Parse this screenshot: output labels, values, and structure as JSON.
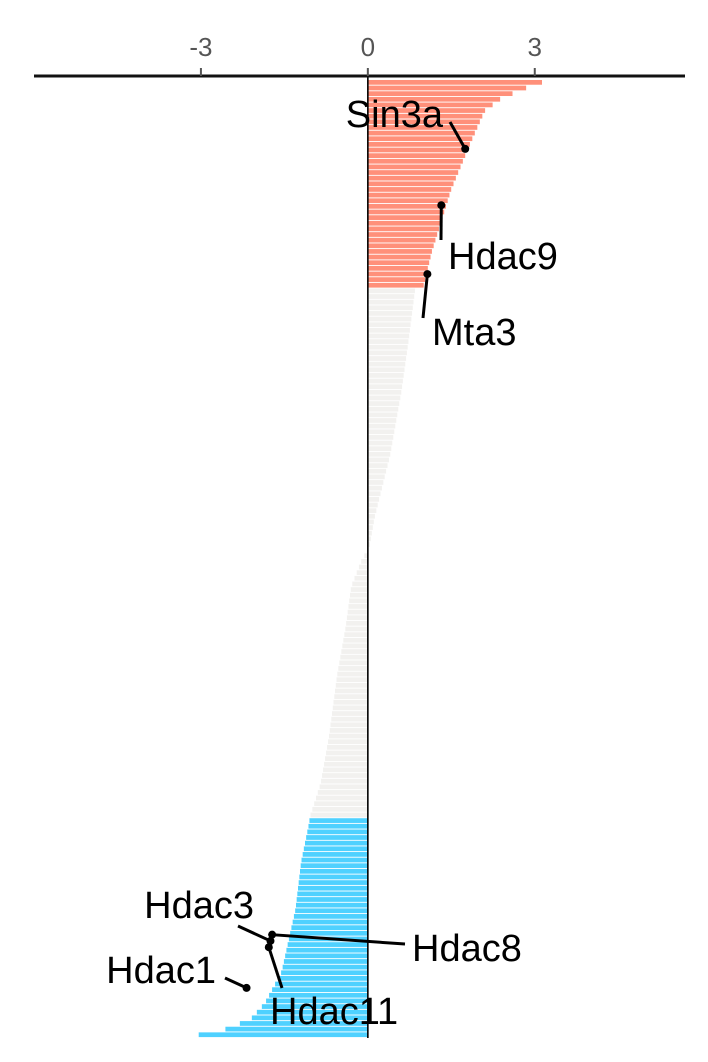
{
  "chart_data": {
    "type": "bar",
    "orientation": "horizontal",
    "title": "",
    "xlabel": "",
    "ylabel": "",
    "x_axis_position": "top",
    "xlim": [
      -6.0,
      5.7
    ],
    "ticks": [
      {
        "value": -3,
        "label": "-3"
      },
      {
        "value": 0,
        "label": "0"
      },
      {
        "value": 3,
        "label": "3"
      }
    ],
    "bar_count": 170,
    "rank_profile": [
      [
        0,
        3.4
      ],
      [
        1,
        3.1
      ],
      [
        3,
        2.8
      ],
      [
        6,
        2.4
      ],
      [
        10,
        2.1
      ],
      [
        20,
        1.85
      ],
      [
        35,
        1.5
      ],
      [
        55,
        1.15
      ],
      [
        66,
        1.0
      ],
      [
        67,
        0.85
      ],
      [
        85,
        0.72
      ],
      [
        100,
        0.6
      ],
      [
        120,
        0.4
      ],
      [
        140,
        0.12
      ],
      [
        150,
        0.02
      ],
      [
        153,
        -0.1
      ],
      [
        162,
        -0.3
      ],
      [
        175,
        -0.4
      ],
      [
        190,
        -0.55
      ],
      [
        210,
        -0.7
      ],
      [
        225,
        -0.85
      ],
      [
        236,
        -1.05
      ],
      [
        237,
        -1.05
      ],
      [
        250,
        -1.2
      ],
      [
        265,
        -1.3
      ],
      [
        285,
        -1.55
      ],
      [
        295,
        -1.85
      ],
      [
        300,
        -2.1
      ],
      [
        303,
        -2.5
      ],
      [
        305,
        -2.9
      ],
      [
        306,
        -4.3
      ]
    ],
    "rank_max": 306,
    "groups": [
      {
        "name": "up",
        "from_value": 1.0,
        "color": "#FF907A"
      },
      {
        "name": "neutral",
        "color": "#F2F1EF"
      },
      {
        "name": "down",
        "to_value": -1.05,
        "color": "#4FD1FF"
      }
    ],
    "zero_line_color": "#000000",
    "annotations": [
      {
        "label": "Sin3a",
        "x": 1.75,
        "rank": 22,
        "anchor": "end"
      },
      {
        "label": "Hdac9",
        "x": 1.32,
        "rank": 40,
        "anchor": "start"
      },
      {
        "label": "Mta3",
        "x": 1.07,
        "rank": 62,
        "anchor": "start"
      },
      {
        "label": "Hdac3",
        "x": -1.75,
        "rank": 275,
        "anchor": "end"
      },
      {
        "label": "Hdac8",
        "x": -1.72,
        "rank": 273,
        "anchor": "start"
      },
      {
        "label": "Hdac1",
        "x": -2.18,
        "rank": 290,
        "anchor": "end"
      },
      {
        "label": "Hdac11",
        "x": -1.78,
        "rank": 277,
        "anchor": "start"
      }
    ]
  }
}
